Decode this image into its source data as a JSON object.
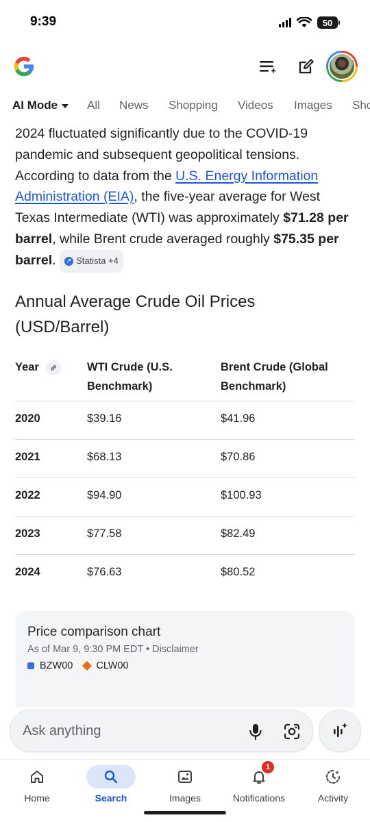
{
  "status": {
    "time": "9:39",
    "battery": "50"
  },
  "header": {
    "logo": "google-g-logo",
    "icons": [
      "search-history-icon",
      "edit-icon",
      "avatar"
    ]
  },
  "tabs": [
    {
      "label": "AI Mode",
      "active": true
    },
    {
      "label": "All"
    },
    {
      "label": "News"
    },
    {
      "label": "Shopping"
    },
    {
      "label": "Videos"
    },
    {
      "label": "Images"
    },
    {
      "label": "Sho"
    }
  ],
  "answer": {
    "p1": "2024 fluctuated significantly due to the COVID-19 pandemic and subsequent geopolitical tensions. According to data from the ",
    "link": "U.S. Energy Information Administration (EIA)",
    "p2": ", the five-year average for West Texas Intermediate (WTI) was approximately ",
    "wti_avg": "$71.28 per barrel",
    "p3": ", while Brent crude averaged roughly ",
    "brent_avg": "$75.35 per barrel",
    "p4": ".",
    "source_chip": "Statista +4"
  },
  "section_title": "Annual Average Crude Oil Prices (USD/Barrel)",
  "table": {
    "headers": [
      "Year",
      "WTI Crude (U.S. Benchmark)",
      "Brent Crude (Global Benchmark)"
    ],
    "header_lines": {
      "wti_1": "WTI Crude (U.S.",
      "wti_2": "Benchmark)",
      "brent_1": "Brent Crude (Global",
      "brent_2": "Benchmark)"
    },
    "rows": [
      [
        "2020",
        "$39.16",
        "$41.96"
      ],
      [
        "2021",
        "$68.13",
        "$70.86"
      ],
      [
        "2022",
        "$94.90",
        "$100.93"
      ],
      [
        "2023",
        "$77.58",
        "$82.49"
      ],
      [
        "2024",
        "$76.63",
        "$80.52"
      ]
    ]
  },
  "chart_card": {
    "title": "Price comparison chart",
    "subtitle": "As of Mar 9, 9:30 PM EDT • Disclaimer",
    "legend": [
      {
        "label": "BZW00",
        "color": "#3b6fe0",
        "shape": "square"
      },
      {
        "label": "CLW00",
        "color": "#e8710a",
        "shape": "diamond"
      }
    ]
  },
  "ask": {
    "placeholder": "Ask anything"
  },
  "bottom_nav": [
    {
      "label": "Home",
      "icon": "home-icon"
    },
    {
      "label": "Search",
      "icon": "search-icon",
      "active": true
    },
    {
      "label": "Images",
      "icon": "images-icon"
    },
    {
      "label": "Notifications",
      "icon": "bell-icon",
      "badge": "1"
    },
    {
      "label": "Activity",
      "icon": "activity-icon"
    }
  ],
  "colors": {
    "link": "#1a56d4",
    "active_nav_bg": "#dbe6fb",
    "badge": "#d93025"
  }
}
